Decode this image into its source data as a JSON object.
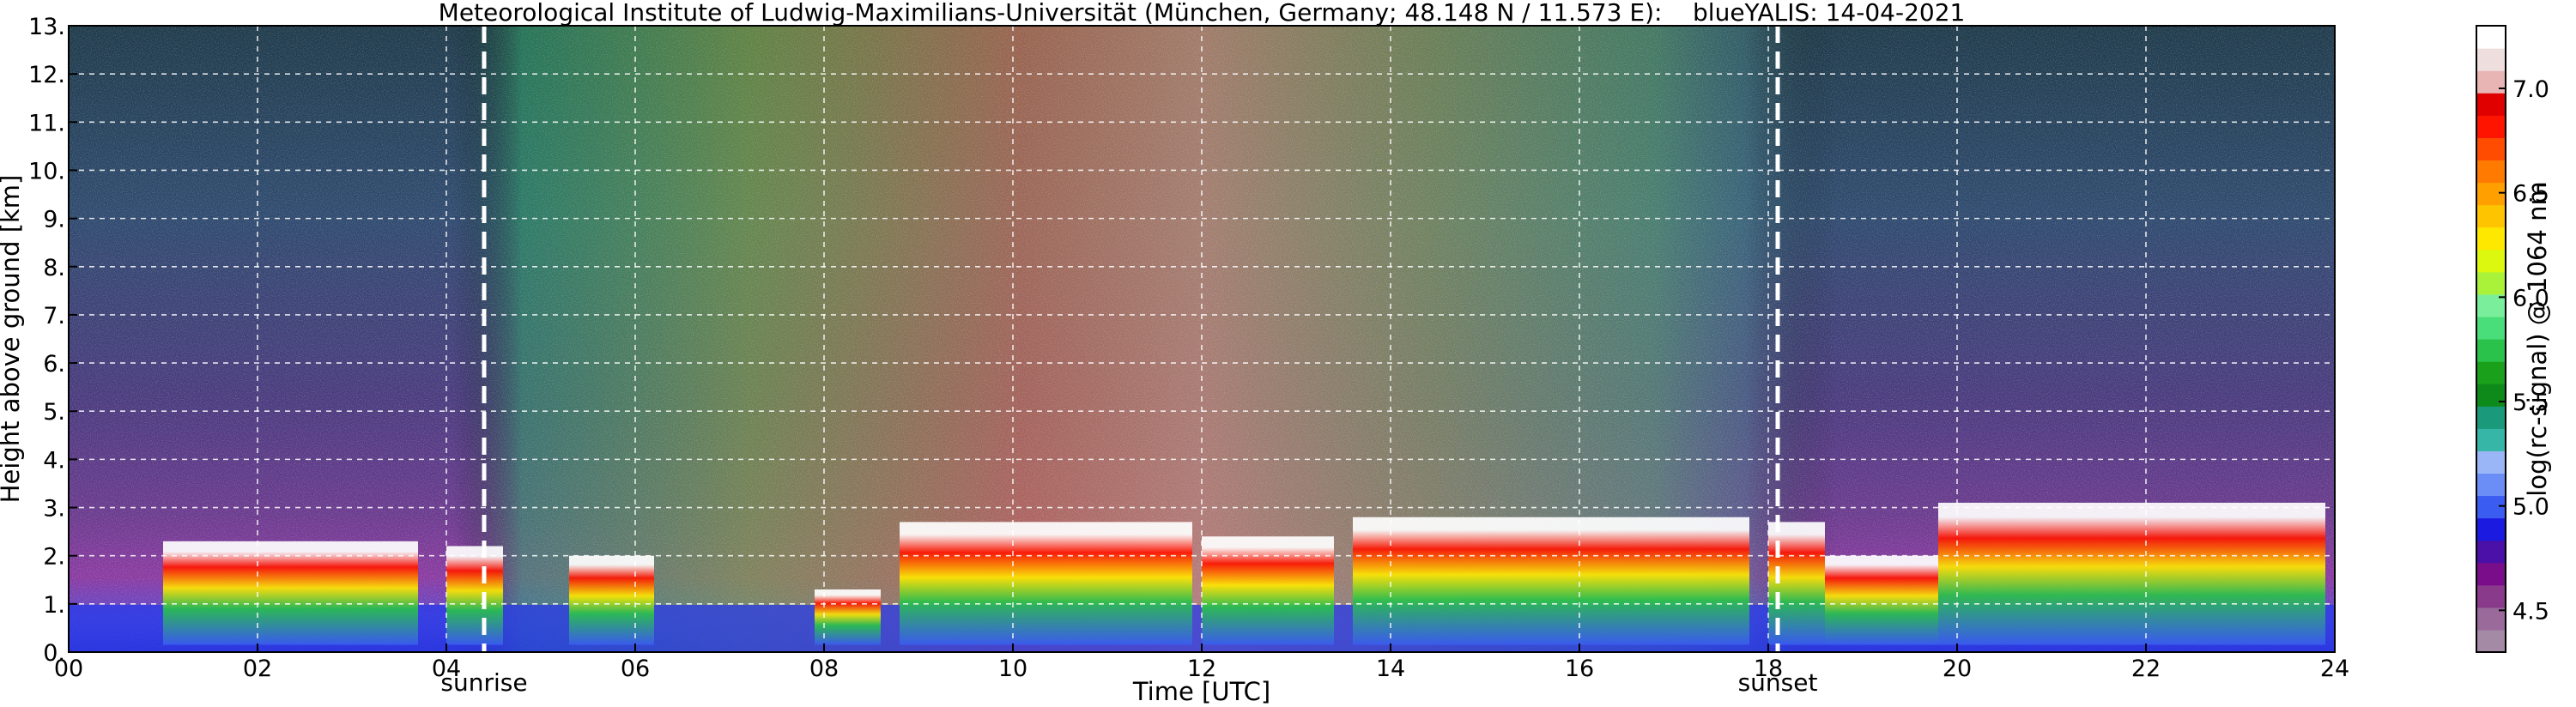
{
  "chart_data": {
    "type": "heatmap",
    "title": "Meteorological Institute of Ludwig-Maximilians-Universität (München, Germany; 48.148 N / 11.573 E):    blueYALIS: 14-04-2021",
    "xlabel": "Time [UTC]",
    "ylabel": "Height above ground [km]",
    "colorbar_label": "log(rc-signal) @ 1064 nm",
    "xlim": [
      0,
      24
    ],
    "ylim": [
      0,
      13
    ],
    "x_ticks": [
      0,
      2,
      4,
      6,
      8,
      10,
      12,
      14,
      16,
      18,
      20,
      22,
      24
    ],
    "x_tick_labels": [
      "00",
      "02",
      "04",
      "06",
      "08",
      "10",
      "12",
      "14",
      "16",
      "18",
      "20",
      "22",
      "24"
    ],
    "y_ticks": [
      0,
      1,
      2,
      3,
      4,
      5,
      6,
      7,
      8,
      9,
      10,
      11,
      12,
      13
    ],
    "y_tick_labels": [
      "0.",
      "1.",
      "2.",
      "3.",
      "4.",
      "5.",
      "6.",
      "7.",
      "8.",
      "9.",
      "10.",
      "11.",
      "12.",
      "13."
    ],
    "grid": true,
    "events": [
      {
        "label": "sunrise",
        "time": 4.4
      },
      {
        "label": "sunset",
        "time": 18.1
      }
    ],
    "colorbar": {
      "range": [
        4.3,
        7.3
      ],
      "ticks": [
        4.5,
        5.0,
        5.5,
        6.0,
        6.5,
        7.0
      ],
      "tick_labels": [
        "4.5",
        "5.0",
        "5.5",
        "6.0",
        "6.5",
        "7.0"
      ],
      "colors": [
        "#a58aa5",
        "#9a6a9a",
        "#8a3a8a",
        "#7a0e8a",
        "#4a10a8",
        "#1a1ae0",
        "#3a5cf0",
        "#6a8ef6",
        "#9ab6f6",
        "#36b6a6",
        "#1a9a7a",
        "#0e8a1a",
        "#1aa01a",
        "#2ac24a",
        "#4ade7a",
        "#7aee9a",
        "#aaf23a",
        "#dcf80e",
        "#ffe800",
        "#ffc400",
        "#ffa000",
        "#ff7a00",
        "#ff4c00",
        "#ff1400",
        "#e00000",
        "#e8b4b4",
        "#eedede",
        "#ffffff"
      ]
    },
    "cloud_layers": [
      {
        "start": 1.0,
        "end": 3.7,
        "top": 2.3
      },
      {
        "start": 4.0,
        "end": 4.6,
        "top": 2.2
      },
      {
        "start": 5.3,
        "end": 6.2,
        "top": 2.0
      },
      {
        "start": 7.9,
        "end": 8.6,
        "top": 1.3
      },
      {
        "start": 8.8,
        "end": 11.9,
        "top": 2.7
      },
      {
        "start": 12.0,
        "end": 13.4,
        "top": 2.4
      },
      {
        "start": 13.6,
        "end": 17.8,
        "top": 2.8
      },
      {
        "start": 18.0,
        "end": 18.6,
        "top": 2.7
      },
      {
        "start": 18.6,
        "end": 19.8,
        "top": 2.0
      },
      {
        "start": 19.8,
        "end": 23.9,
        "top": 3.1
      }
    ]
  }
}
